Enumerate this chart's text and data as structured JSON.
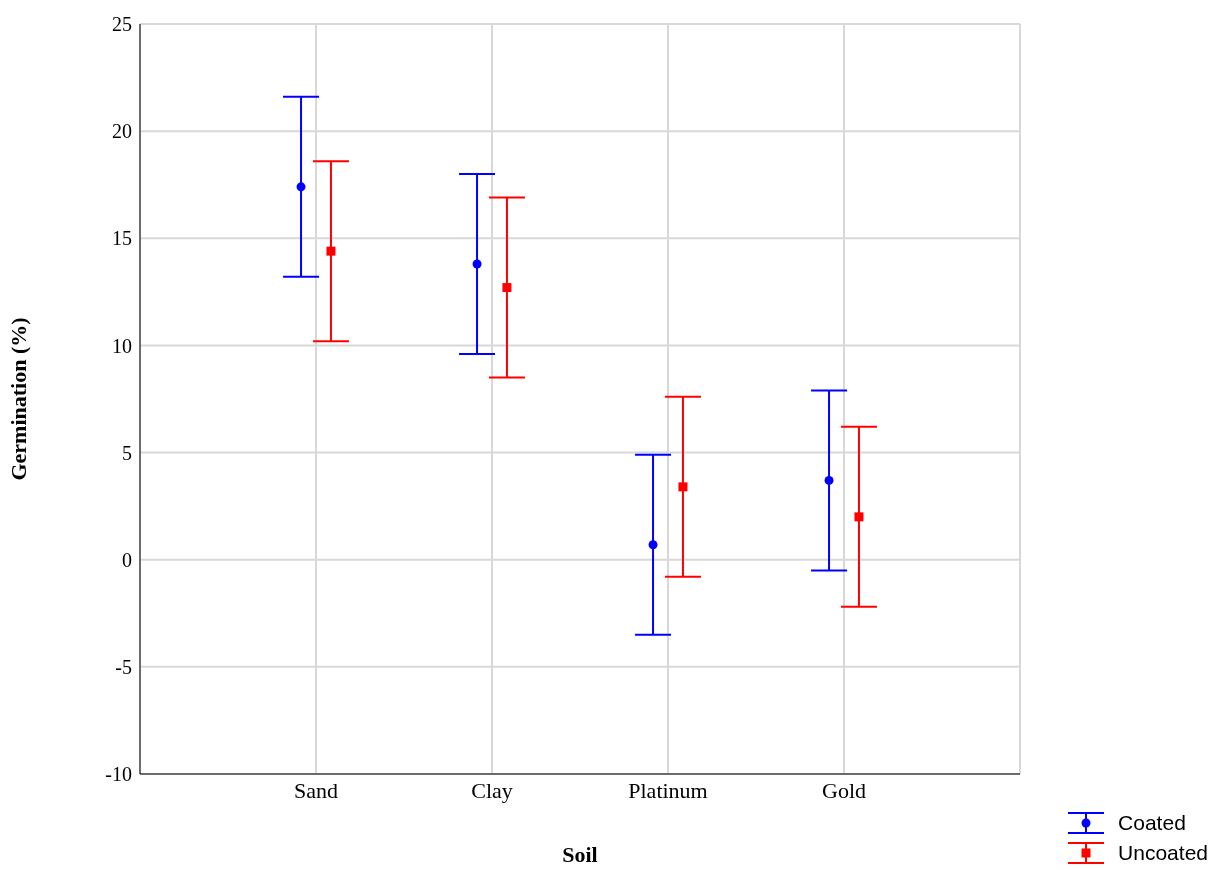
{
  "chart_data": {
    "type": "scatter",
    "xlabel": "Soil",
    "ylabel": "Germination (%)",
    "categories": [
      "Sand",
      "Clay",
      "Platinum",
      "Gold"
    ],
    "series": [
      {
        "name": "Coated",
        "color": "#0000ff",
        "marker": "circle",
        "values": [
          17.4,
          13.8,
          0.7,
          3.7
        ],
        "errors": [
          4.2,
          4.2,
          4.2,
          4.2
        ]
      },
      {
        "name": "Uncoated",
        "color": "#ff0000",
        "marker": "square",
        "values": [
          14.4,
          12.7,
          3.4,
          2.0
        ],
        "errors": [
          4.2,
          4.2,
          4.2,
          4.2
        ]
      }
    ],
    "ylim": [
      -10,
      25
    ],
    "yticks": [
      -10,
      -5,
      0,
      5,
      10,
      15,
      20,
      25
    ],
    "grid": true,
    "legend": "bottom right"
  }
}
